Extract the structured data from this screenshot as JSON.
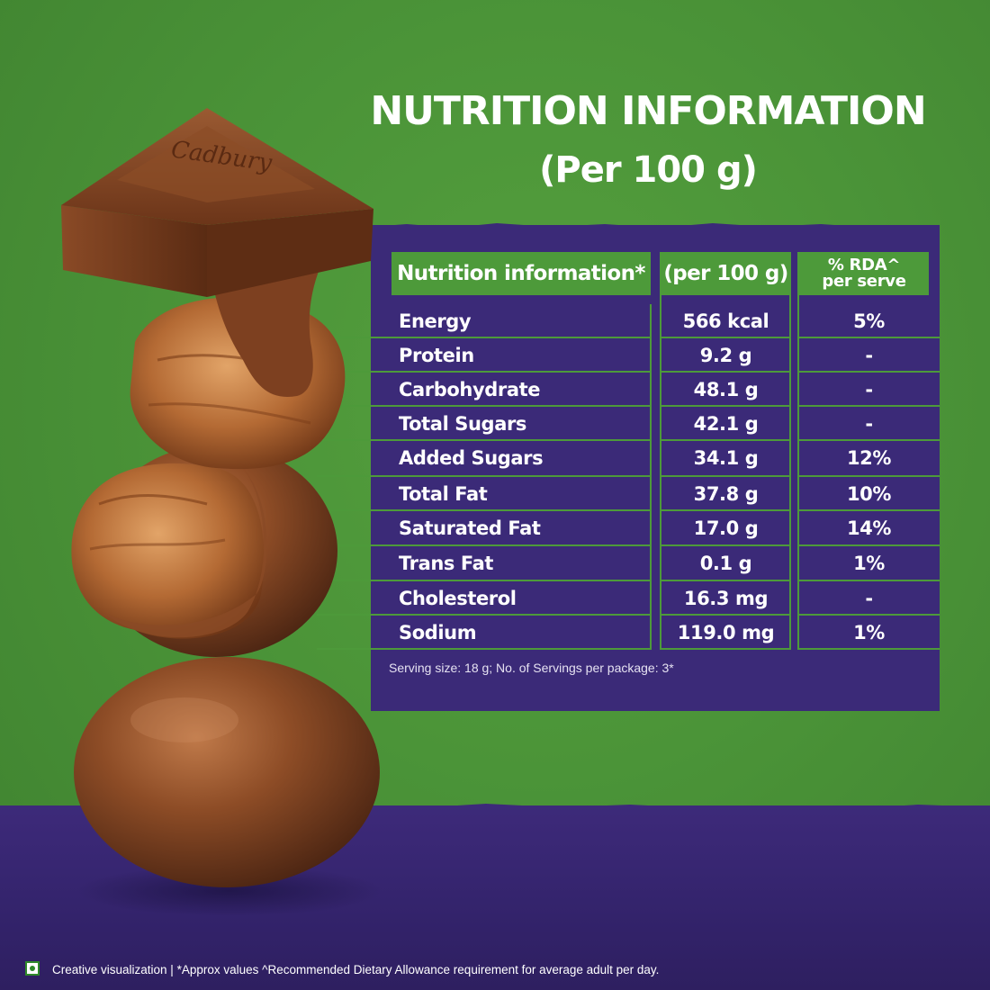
{
  "title": {
    "line1": "NUTRITION INFORMATION",
    "line2": "(Per 100 g)"
  },
  "brand_logo_text": "Cadbury",
  "table": {
    "headers": {
      "name": "Nutrition information*",
      "per100": "(per 100 g)",
      "rda_line1": "% RDA^",
      "rda_line2": "per serve"
    },
    "rows": [
      {
        "name": "Energy",
        "value": "566 kcal",
        "rda": "5%"
      },
      {
        "name": "Protein",
        "value": "9.2 g",
        "rda": "-"
      },
      {
        "name": "Carbohydrate",
        "value": "48.1 g",
        "rda": "-"
      },
      {
        "name": "Total Sugars",
        "value": "42.1 g",
        "rda": "-"
      },
      {
        "name": "Added Sugars",
        "value": "34.1 g",
        "rda": "12%"
      },
      {
        "name": "Total Fat",
        "value": "37.8 g",
        "rda": "10%"
      },
      {
        "name": "Saturated Fat",
        "value": "17.0 g",
        "rda": "14%"
      },
      {
        "name": "Trans Fat",
        "value": "0.1 g",
        "rda": "1%"
      },
      {
        "name": "Cholesterol",
        "value": "16.3 mg",
        "rda": "-"
      },
      {
        "name": "Sodium",
        "value": "119.0 mg",
        "rda": "1%"
      }
    ]
  },
  "serving_note": "Serving size: 18 g; No. of Servings per package: 3*",
  "footer_note": "Creative visualization | *Approx values ^Recommended Dietary Allowance requirement for average adult per day.",
  "colors": {
    "green_bg": "#4b9438",
    "purple": "#3b2a78",
    "header_green": "#4d9a3a",
    "chocolate": "#7a3f1f"
  }
}
